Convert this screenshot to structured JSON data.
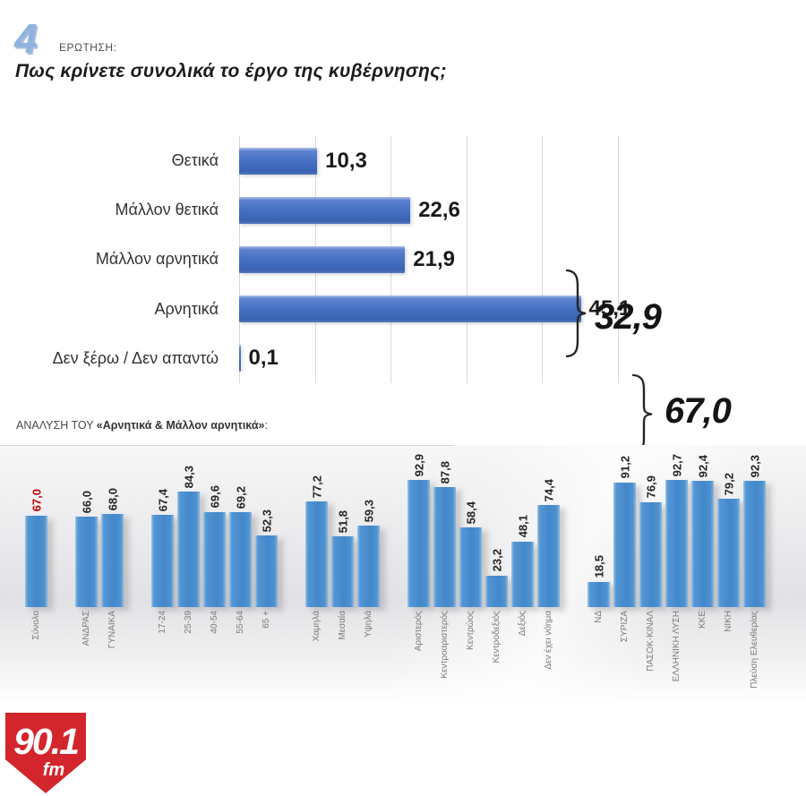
{
  "header": {
    "number": "4",
    "question_label": "ΕΡΩΤΗΣΗ:",
    "question": "Πως κρίνετε συνολικά το έργο της κυβέρνησης;"
  },
  "analysis": {
    "prefix": "ΑΝΑΛΥΣΗ ΤΟΥ ",
    "highlight": "«Αρνητικά & Μάλλον αρνητικά»",
    "suffix": ":"
  },
  "logo": {
    "station": "90.1",
    "band": "fm",
    "color": "#d2262c"
  },
  "colors": {
    "top_bar_blue": "#4470c4",
    "bottom_bar_blue": "#4388cb",
    "emphasis_red": "#c00000",
    "gridline": "#d9d9d9",
    "category_gray": "#7a7a7a"
  },
  "chart_data": [
    {
      "type": "bar",
      "orientation": "horizontal",
      "title": "Πως κρίνετε συνολικά το έργο της κυβέρνησης;",
      "categories": [
        "Θετικά",
        "Μάλλον θετικά",
        "Μάλλον αρνητικά",
        "Αρνητικά",
        "Δεν ξέρω / Δεν απαντώ"
      ],
      "values": [
        10.3,
        22.6,
        21.9,
        45.1,
        0.1
      ],
      "value_labels": [
        "10,3",
        "22,6",
        "21,9",
        "45,1",
        "0,1"
      ],
      "xlim": [
        0,
        50
      ],
      "grid_step": 10,
      "grid": true,
      "legend": false,
      "annotations": [
        {
          "label": "32,9",
          "covers": [
            "Θετικά",
            "Μάλλον θετικά"
          ]
        },
        {
          "label": "67,0",
          "covers": [
            "Μάλλον αρνητικά",
            "Αρνητικά"
          ]
        }
      ]
    },
    {
      "type": "bar",
      "orientation": "vertical",
      "title": "ΑΝΑΛΥΣΗ ΤΟΥ «Αρνητικά & Μάλλον αρνητικά»:",
      "ylim": [
        0,
        100
      ],
      "grid": false,
      "legend": false,
      "groups": [
        {
          "bars": [
            {
              "label": "Σύνολο",
              "value": 67.0,
              "display": "67,0",
              "emphasis": true
            }
          ]
        },
        {
          "bars": [
            {
              "label": "ΑΝΔΡΑΣ",
              "value": 66.0,
              "display": "66,0"
            },
            {
              "label": "ΓΥΝΑΙΚΑ",
              "value": 68.0,
              "display": "68,0"
            }
          ]
        },
        {
          "bars": [
            {
              "label": "17-24",
              "value": 67.4,
              "display": "67,4"
            },
            {
              "label": "25-39",
              "value": 84.3,
              "display": "84,3"
            },
            {
              "label": "40-54",
              "value": 69.6,
              "display": "69,6"
            },
            {
              "label": "55-64",
              "value": 69.2,
              "display": "69,2"
            },
            {
              "label": "65 +",
              "value": 52.3,
              "display": "52,3"
            }
          ]
        },
        {
          "bars": [
            {
              "label": "Χαμηλά",
              "value": 77.2,
              "display": "77,2"
            },
            {
              "label": "Μεσαία",
              "value": 51.8,
              "display": "51,8"
            },
            {
              "label": "Υψηλά",
              "value": 59.3,
              "display": "59,3"
            }
          ]
        },
        {
          "bars": [
            {
              "label": "Αριστερός",
              "value": 92.9,
              "display": "92,9"
            },
            {
              "label": "Κεντροαριστερός",
              "value": 87.8,
              "display": "87,8"
            },
            {
              "label": "Κεντρώος",
              "value": 58.4,
              "display": "58,4"
            },
            {
              "label": "Κεντροδεξιός",
              "value": 23.2,
              "display": "23,2"
            },
            {
              "label": "Δεξιός",
              "value": 48.1,
              "display": "48,1"
            },
            {
              "label": "Δεν έχει νόημα",
              "value": 74.4,
              "display": "74,4"
            }
          ]
        },
        {
          "bars": [
            {
              "label": "ΝΔ",
              "value": 18.5,
              "display": "18,5"
            },
            {
              "label": "ΣΥΡΙΖΑ",
              "value": 91.2,
              "display": "91,2"
            },
            {
              "label": "ΠΑΣΟΚ-ΚΙΝΑΛ",
              "value": 76.9,
              "display": "76,9"
            },
            {
              "label": "ΕΛΛΗΝΙΚΗ ΛΥΣΗ",
              "value": 92.7,
              "display": "92,7"
            },
            {
              "label": "ΚΚΕ",
              "value": 92.4,
              "display": "92,4"
            },
            {
              "label": "ΝΙΚΗ",
              "value": 79.2,
              "display": "79,2"
            },
            {
              "label": "Πλεύση Ελευθερίας",
              "value": 92.3,
              "display": "92,3"
            }
          ]
        }
      ]
    }
  ]
}
